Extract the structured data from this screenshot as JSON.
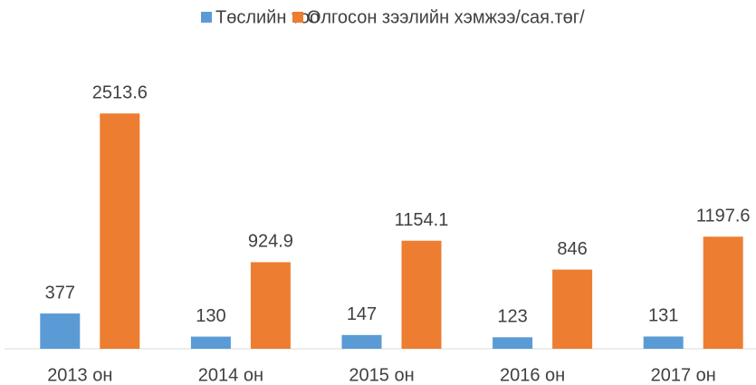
{
  "chart_data": {
    "type": "bar",
    "categories": [
      "2013 он",
      "2014 он",
      "2015 он",
      "2016 он",
      "2017 он"
    ],
    "series": [
      {
        "name": "Төслийн тоо",
        "color": "#5b9bd5",
        "values": [
          377,
          130,
          147,
          123,
          131
        ]
      },
      {
        "name": "Олгосон зээлийн хэмжээ/сая.төг/",
        "color": "#ed7d31",
        "values": [
          2513.6,
          924.9,
          1154.1,
          846,
          1197.6
        ]
      }
    ],
    "ylim": [
      0,
      2700
    ],
    "legend": "top"
  }
}
